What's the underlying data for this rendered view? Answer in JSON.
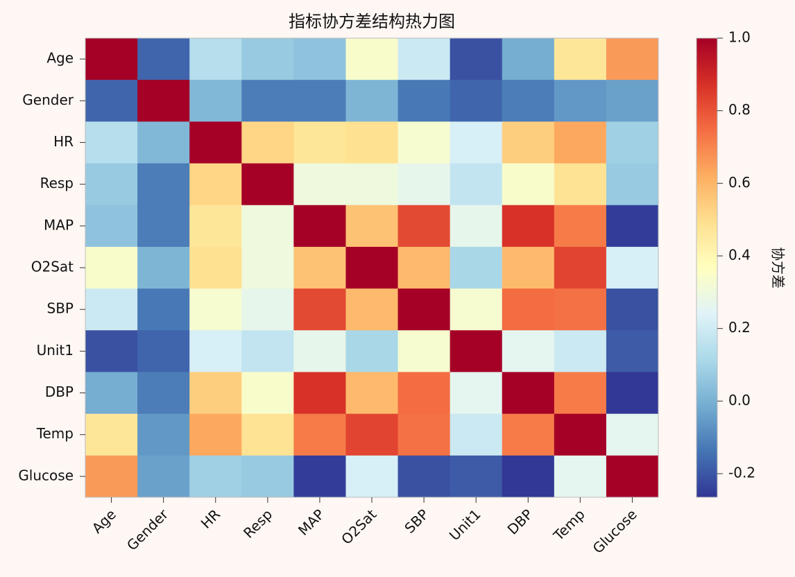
{
  "chart_data": {
    "type": "heatmap",
    "title": "指标协方差结构热力图",
    "categories": [
      "Age",
      "Gender",
      "HR",
      "Resp",
      "MAP",
      "O2Sat",
      "SBP",
      "Unit1",
      "DBP",
      "Temp",
      "Glucose"
    ],
    "values": [
      [
        1.0,
        -0.17,
        0.14,
        0.07,
        0.05,
        0.34,
        0.19,
        -0.21,
        -0.01,
        0.47,
        0.66
      ],
      [
        -0.17,
        1.0,
        0.02,
        -0.12,
        -0.12,
        0.01,
        -0.13,
        -0.17,
        -0.12,
        -0.06,
        -0.04
      ],
      [
        0.14,
        0.02,
        1.0,
        0.52,
        0.47,
        0.49,
        0.33,
        0.22,
        0.54,
        0.63,
        0.09
      ],
      [
        0.07,
        -0.12,
        0.52,
        1.0,
        0.3,
        0.3,
        0.27,
        0.17,
        0.34,
        0.48,
        0.07
      ],
      [
        0.05,
        -0.12,
        0.47,
        0.3,
        1.0,
        0.57,
        0.82,
        0.27,
        0.87,
        0.72,
        -0.25
      ],
      [
        0.34,
        0.01,
        0.49,
        0.3,
        0.57,
        1.0,
        0.59,
        0.11,
        0.59,
        0.83,
        0.22
      ],
      [
        0.19,
        -0.13,
        0.33,
        0.27,
        0.82,
        0.59,
        1.0,
        0.33,
        0.75,
        0.74,
        -0.21
      ],
      [
        -0.21,
        -0.17,
        0.22,
        0.17,
        0.27,
        0.11,
        0.33,
        1.0,
        0.26,
        0.19,
        -0.19
      ],
      [
        -0.01,
        -0.12,
        0.54,
        0.34,
        0.87,
        0.59,
        0.75,
        0.26,
        1.0,
        0.72,
        -0.26
      ],
      [
        0.47,
        -0.06,
        0.63,
        0.48,
        0.72,
        0.83,
        0.74,
        0.19,
        0.72,
        1.0,
        0.26
      ],
      [
        0.66,
        -0.04,
        0.09,
        0.07,
        -0.25,
        0.22,
        -0.21,
        -0.19,
        -0.26,
        0.26,
        1.0
      ]
    ],
    "colormap": "RdYlBu_r",
    "clim": [
      -0.265,
      1.0
    ],
    "colorbar_label": "协方差",
    "colorbar_ticks": [
      {
        "value": 1.0,
        "label": "1.0"
      },
      0.8,
      0.6,
      0.4,
      0.2,
      {
        "value": 0,
        "label": "0.0"
      },
      -0.2
    ]
  }
}
